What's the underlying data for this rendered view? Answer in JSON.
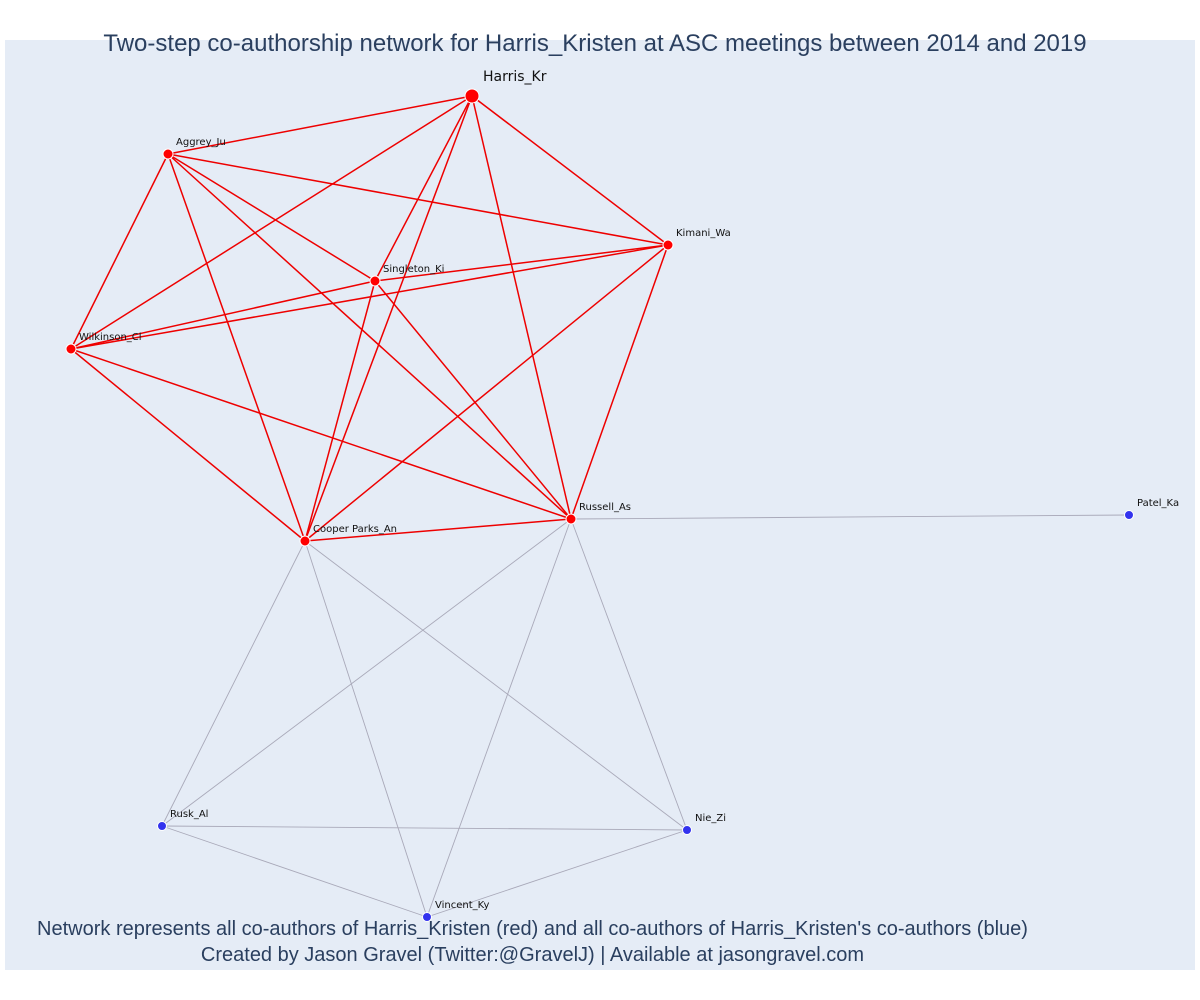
{
  "title": "Two-step co-authorship network for Harris_Kristen at ASC meetings between 2014 and 2019",
  "footer": {
    "line1": "Network represents all co-authors of Harris_Kristen (red) and all co-authors of Harris_Kristen's co-authors (blue)",
    "line2": "Created by Jason Gravel (Twitter:@GravelJ) | Available at jasongravel.com"
  },
  "colors": {
    "background": "#e5ecf6",
    "first_step": "#ff0000",
    "second_step": "#3333ee",
    "first_step_edge": "#ee0000",
    "second_step_edge": "#a9a9b9",
    "text": "#2a3f5f"
  },
  "nodes": [
    {
      "id": "harris",
      "label": "Harris_Kr",
      "group": "center"
    },
    {
      "id": "aggrey",
      "label": "Aggrey_Ju",
      "group": "first"
    },
    {
      "id": "kimani",
      "label": "Kimani_Wa",
      "group": "first"
    },
    {
      "id": "singleton",
      "label": "Singleton_Ki",
      "group": "first"
    },
    {
      "id": "wilkinson",
      "label": "Wilkinson_Cl",
      "group": "first"
    },
    {
      "id": "cooper",
      "label": "Cooper Parks_An",
      "group": "first"
    },
    {
      "id": "russell",
      "label": "Russell_As",
      "group": "first"
    },
    {
      "id": "patel",
      "label": "Patel_Ka",
      "group": "second"
    },
    {
      "id": "rusk",
      "label": "Rusk_Al",
      "group": "second"
    },
    {
      "id": "nie",
      "label": "Nie_Zi",
      "group": "second"
    },
    {
      "id": "vincent",
      "label": "Vincent_Ky",
      "group": "second"
    }
  ],
  "edges": [
    [
      "harris",
      "aggrey"
    ],
    [
      "harris",
      "kimani"
    ],
    [
      "harris",
      "wilkinson"
    ],
    [
      "harris",
      "singleton"
    ],
    [
      "harris",
      "cooper"
    ],
    [
      "harris",
      "russell"
    ],
    [
      "aggrey",
      "wilkinson"
    ],
    [
      "aggrey",
      "cooper"
    ],
    [
      "aggrey",
      "singleton"
    ],
    [
      "aggrey",
      "kimani"
    ],
    [
      "aggrey",
      "russell"
    ],
    [
      "kimani",
      "singleton"
    ],
    [
      "kimani",
      "wilkinson"
    ],
    [
      "kimani",
      "cooper"
    ],
    [
      "kimani",
      "russell"
    ],
    [
      "singleton",
      "wilkinson"
    ],
    [
      "singleton",
      "cooper"
    ],
    [
      "singleton",
      "russell"
    ],
    [
      "wilkinson",
      "cooper"
    ],
    [
      "wilkinson",
      "russell"
    ],
    [
      "cooper",
      "russell"
    ],
    [
      "russell",
      "patel"
    ],
    [
      "cooper",
      "rusk"
    ],
    [
      "cooper",
      "vincent"
    ],
    [
      "cooper",
      "nie"
    ],
    [
      "russell",
      "rusk"
    ],
    [
      "russell",
      "vincent"
    ],
    [
      "russell",
      "nie"
    ],
    [
      "rusk",
      "nie"
    ],
    [
      "rusk",
      "vincent"
    ],
    [
      "vincent",
      "nie"
    ]
  ]
}
